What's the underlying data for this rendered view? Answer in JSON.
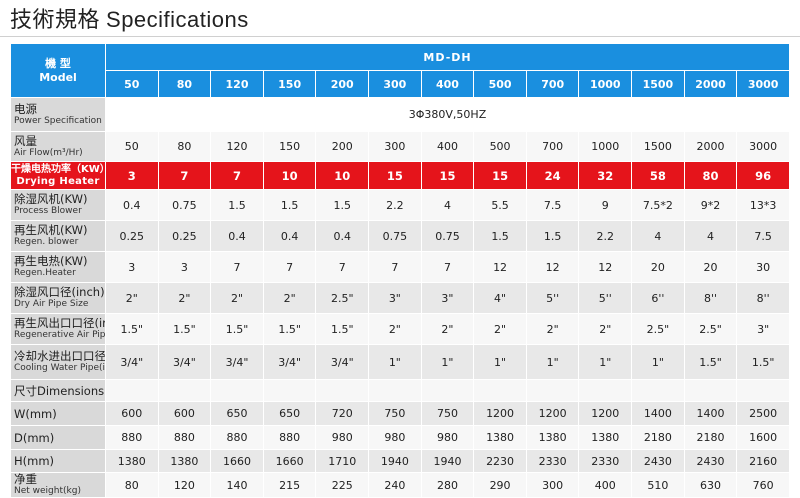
{
  "page_title": {
    "zh": "技術規格",
    "en": "Specifications"
  },
  "table": {
    "model_label_zh": "機 型",
    "model_label_en": "Model",
    "series_name": "MD-DH",
    "models": [
      "50",
      "80",
      "120",
      "150",
      "200",
      "300",
      "400",
      "500",
      "700",
      "1000",
      "1500",
      "2000",
      "3000"
    ],
    "rows": [
      {
        "label_zh": "电源",
        "label_en": "Power Specification",
        "merged_value": "3Φ380V,50HZ"
      },
      {
        "label_zh": "风量",
        "label_en": "Air Flow(m³/Hr)",
        "values": [
          "50",
          "80",
          "120",
          "150",
          "200",
          "300",
          "400",
          "500",
          "700",
          "1000",
          "1500",
          "2000",
          "3000"
        ]
      },
      {
        "label_zh": "干燥电热功率（KW）",
        "label_en": "Drying Heater",
        "highlight": true,
        "values": [
          "3",
          "7",
          "7",
          "10",
          "10",
          "15",
          "15",
          "15",
          "24",
          "32",
          "58",
          "80",
          "96"
        ]
      },
      {
        "label_zh": "除湿风机(KW)",
        "label_en": "Process Blower",
        "values": [
          "0.4",
          "0.75",
          "1.5",
          "1.5",
          "1.5",
          "2.2",
          "4",
          "5.5",
          "7.5",
          "9",
          "7.5*2",
          "9*2",
          "13*3"
        ]
      },
      {
        "label_zh": "再生风机(KW)",
        "label_en": "Regen. blower",
        "values": [
          "0.25",
          "0.25",
          "0.4",
          "0.4",
          "0.4",
          "0.75",
          "0.75",
          "1.5",
          "1.5",
          "2.2",
          "4",
          "4",
          "7.5"
        ]
      },
      {
        "label_zh": "再生电热(KW)",
        "label_en": "Regen.Heater",
        "values": [
          "3",
          "3",
          "7",
          "7",
          "7",
          "7",
          "7",
          "12",
          "12",
          "12",
          "20",
          "20",
          "30"
        ]
      },
      {
        "label_zh": "除湿风口径(inch)",
        "label_en": "Dry Air Pipe Size",
        "values": [
          "2\"",
          "2\"",
          "2\"",
          "2\"",
          "2.5\"",
          "3\"",
          "3\"",
          "4\"",
          "5''",
          "5''",
          "6''",
          "8''",
          "8''"
        ]
      },
      {
        "label_zh": "再生风出口口径(inch)",
        "label_en": "Regenerative Air Pipe Size",
        "values": [
          "1.5\"",
          "1.5\"",
          "1.5\"",
          "1.5\"",
          "1.5\"",
          "2\"",
          "2\"",
          "2\"",
          "2\"",
          "2\"",
          "2.5\"",
          "2.5\"",
          "3\""
        ]
      },
      {
        "label_zh": "冷却水进出口口径",
        "label_en": "Cooling Water Pipe(inch)",
        "values": [
          "3/4\"",
          "3/4\"",
          "3/4\"",
          "3/4\"",
          "3/4\"",
          "1\"",
          "1\"",
          "1\"",
          "1\"",
          "1\"",
          "1\"",
          "1.5\"",
          "1.5\""
        ]
      },
      {
        "label_zh": "尺寸Dimensions",
        "label_en": "",
        "section": true
      },
      {
        "label_zh": "W(mm)",
        "label_en": "",
        "values": [
          "600",
          "600",
          "650",
          "650",
          "720",
          "750",
          "750",
          "1200",
          "1200",
          "1200",
          "1400",
          "1400",
          "2500"
        ]
      },
      {
        "label_zh": "D(mm)",
        "label_en": "",
        "values": [
          "880",
          "880",
          "880",
          "880",
          "980",
          "980",
          "980",
          "1380",
          "1380",
          "1380",
          "2180",
          "2180",
          "1600"
        ]
      },
      {
        "label_zh": "H(mm)",
        "label_en": "",
        "values": [
          "1380",
          "1380",
          "1660",
          "1660",
          "1710",
          "1940",
          "1940",
          "2230",
          "2330",
          "2330",
          "2430",
          "2430",
          "2160"
        ]
      },
      {
        "label_zh": "净重",
        "label_en": "Net weight(kg)",
        "values": [
          "80",
          "120",
          "140",
          "215",
          "225",
          "240",
          "280",
          "290",
          "300",
          "400",
          "510",
          "630",
          "760"
        ]
      }
    ]
  }
}
